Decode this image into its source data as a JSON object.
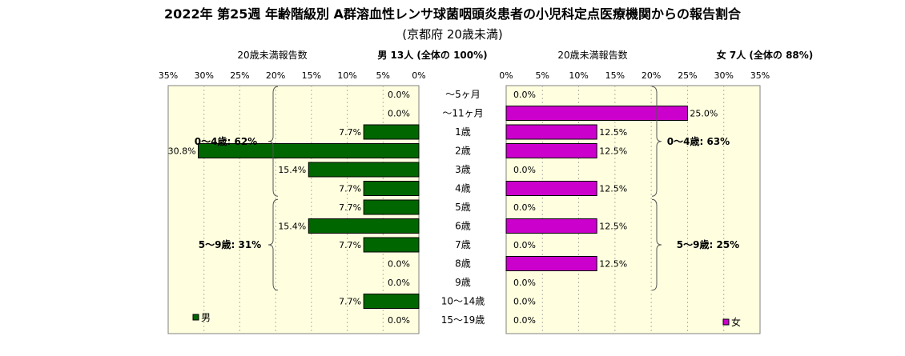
{
  "chart_data": {
    "type": "bar",
    "title": "2022年 第25週  年齢階級別 A群溶血性レンサ球菌咽頭炎患者の小児科定点医療機関からの報告割合",
    "subtitle": "(京都府 20歳未満)",
    "categories": [
      "〜5ヶ月",
      "〜11ヶ月",
      "1歳",
      "2歳",
      "3歳",
      "4歳",
      "5歳",
      "6歳",
      "7歳",
      "8歳",
      "9歳",
      "10〜14歳",
      "15〜19歳"
    ],
    "series": [
      {
        "name": "男",
        "color": "#006600",
        "axis_label": "20歳未満報告数",
        "summary": "男  13人  (全体の  100%)",
        "values": [
          0.0,
          0.0,
          7.7,
          30.8,
          15.4,
          7.7,
          7.7,
          15.4,
          7.7,
          0.0,
          0.0,
          7.7,
          0.0
        ],
        "labels": [
          "0.0%",
          "0.0%",
          "7.7%",
          "30.8%",
          "15.4%",
          "7.7%",
          "7.7%",
          "15.4%",
          "7.7%",
          "0.0%",
          "0.0%",
          "7.7%",
          "0.0%"
        ],
        "group_annotations": [
          "0〜4歳: 62%",
          "5〜9歳: 31%"
        ]
      },
      {
        "name": "女",
        "color": "#cc00cc",
        "axis_label": "20歳未満報告数",
        "summary": "女  7人  (全体の  88%)",
        "values": [
          0.0,
          25.0,
          12.5,
          12.5,
          0.0,
          12.5,
          0.0,
          12.5,
          0.0,
          12.5,
          0.0,
          0.0,
          0.0
        ],
        "labels": [
          "0.0%",
          "25.0%",
          "12.5%",
          "12.5%",
          "0.0%",
          "12.5%",
          "0.0%",
          "12.5%",
          "0.0%",
          "12.5%",
          "0.0%",
          "0.0%",
          "0.0%"
        ],
        "group_annotations": [
          "0〜4歳: 63%",
          "5〜9歳: 25%"
        ]
      }
    ],
    "xlim": [
      0,
      35
    ],
    "xticks": [
      "0%",
      "5%",
      "10%",
      "15%",
      "20%",
      "25%",
      "30%",
      "35%"
    ],
    "grid": true,
    "legend": "bottom-left (男), bottom-right (女)",
    "plot_background": "#ffffe0"
  }
}
